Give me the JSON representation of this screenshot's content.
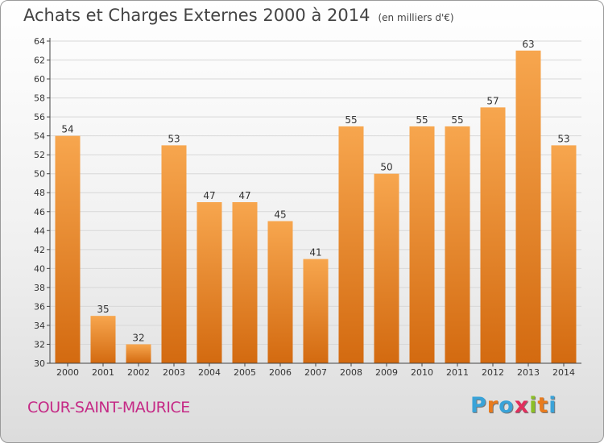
{
  "header": {
    "title": "Achats et Charges Externes 2000 à 2014",
    "subtitle": "(en milliers d'€)"
  },
  "footer": {
    "city": "COUR-SAINT-MAURICE",
    "logo_letters": [
      "P",
      "r",
      "o",
      "x",
      "i",
      "t",
      "i"
    ],
    "logo_colors": [
      "#3aa3d8",
      "#e87b1e",
      "#3aa3d8",
      "#e02f5d",
      "#8cbf26",
      "#e87b1e",
      "#3aa3d8"
    ]
  },
  "colors": {
    "bar_light": "#f7a64e",
    "bar_dark": "#d36a10",
    "axis": "#444444",
    "grid": "#d8d8d8"
  },
  "chart_data": {
    "type": "bar",
    "title": "Achats et Charges Externes 2000 à 2014",
    "subtitle": "(en milliers d'€)",
    "categories": [
      "2000",
      "2001",
      "2002",
      "2003",
      "2004",
      "2005",
      "2006",
      "2007",
      "2008",
      "2009",
      "2010",
      "2011",
      "2012",
      "2013",
      "2014"
    ],
    "values": [
      54,
      35,
      32,
      53,
      47,
      47,
      45,
      41,
      55,
      50,
      55,
      55,
      57,
      63,
      53
    ],
    "ylim": [
      30,
      64
    ],
    "yticks": [
      30,
      32,
      34,
      36,
      38,
      40,
      42,
      44,
      46,
      48,
      50,
      52,
      54,
      56,
      58,
      60,
      62,
      64
    ],
    "grid": true,
    "data_labels": true
  }
}
